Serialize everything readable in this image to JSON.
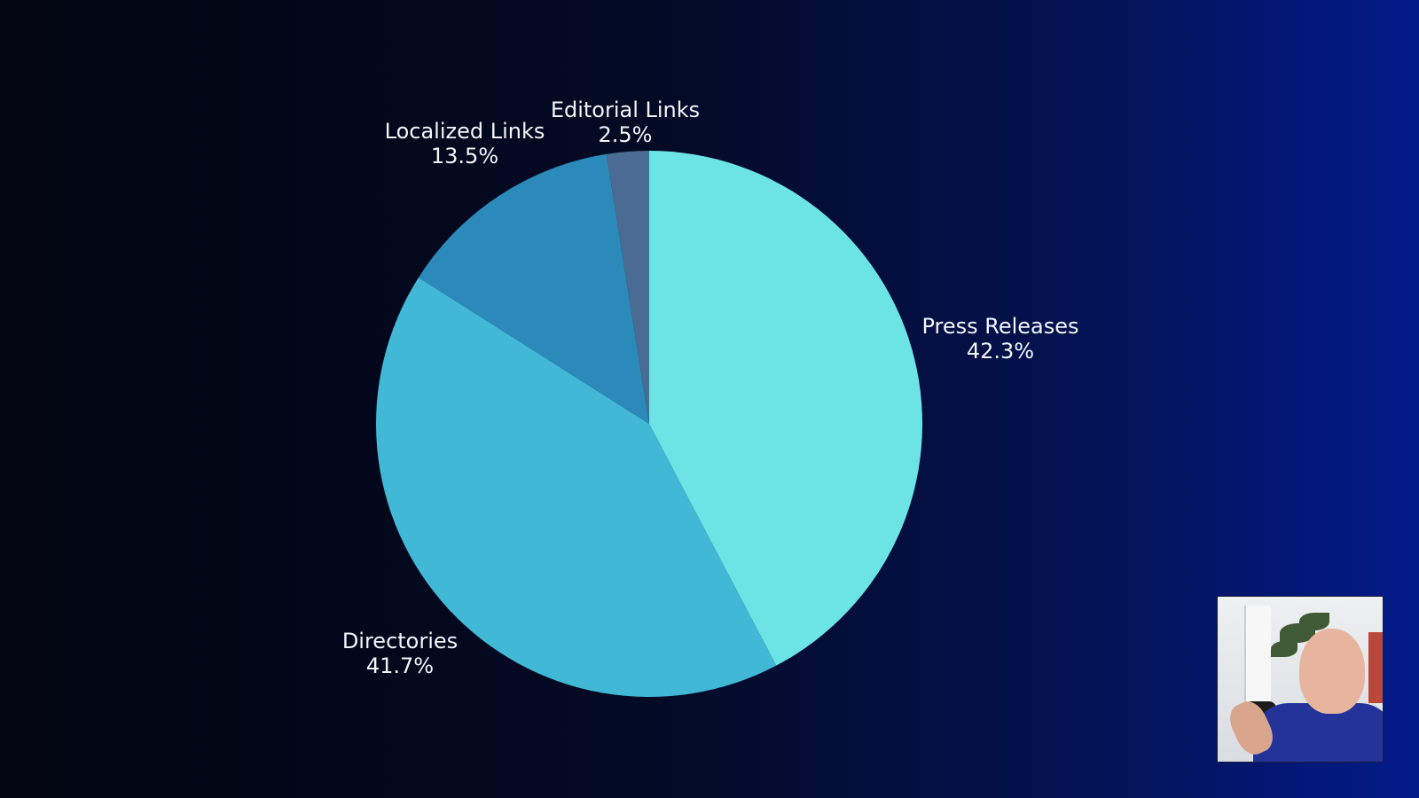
{
  "chart_data": {
    "type": "pie",
    "title": "",
    "slices": [
      {
        "label": "Press Releases",
        "value": 42.3,
        "display": "42.3%",
        "color": "#6ce4e6"
      },
      {
        "label": "Directories",
        "value": 41.7,
        "display": "41.7%",
        "color": "#41b8d6"
      },
      {
        "label": "Localized Links",
        "value": 13.5,
        "display": "13.5%",
        "color": "#2b8ab9"
      },
      {
        "label": "Editorial Links",
        "value": 2.5,
        "display": "2.5%",
        "color": "#4a6b93"
      }
    ],
    "start_angle_deg": 0,
    "direction": "clockwise",
    "labels_outside": true
  },
  "colors": {
    "background_left": "#02050f",
    "background_right": "#031a8a",
    "label_text": "#f2f5fb"
  },
  "webcam": {
    "icon": "presenter-webcam-overlay"
  }
}
